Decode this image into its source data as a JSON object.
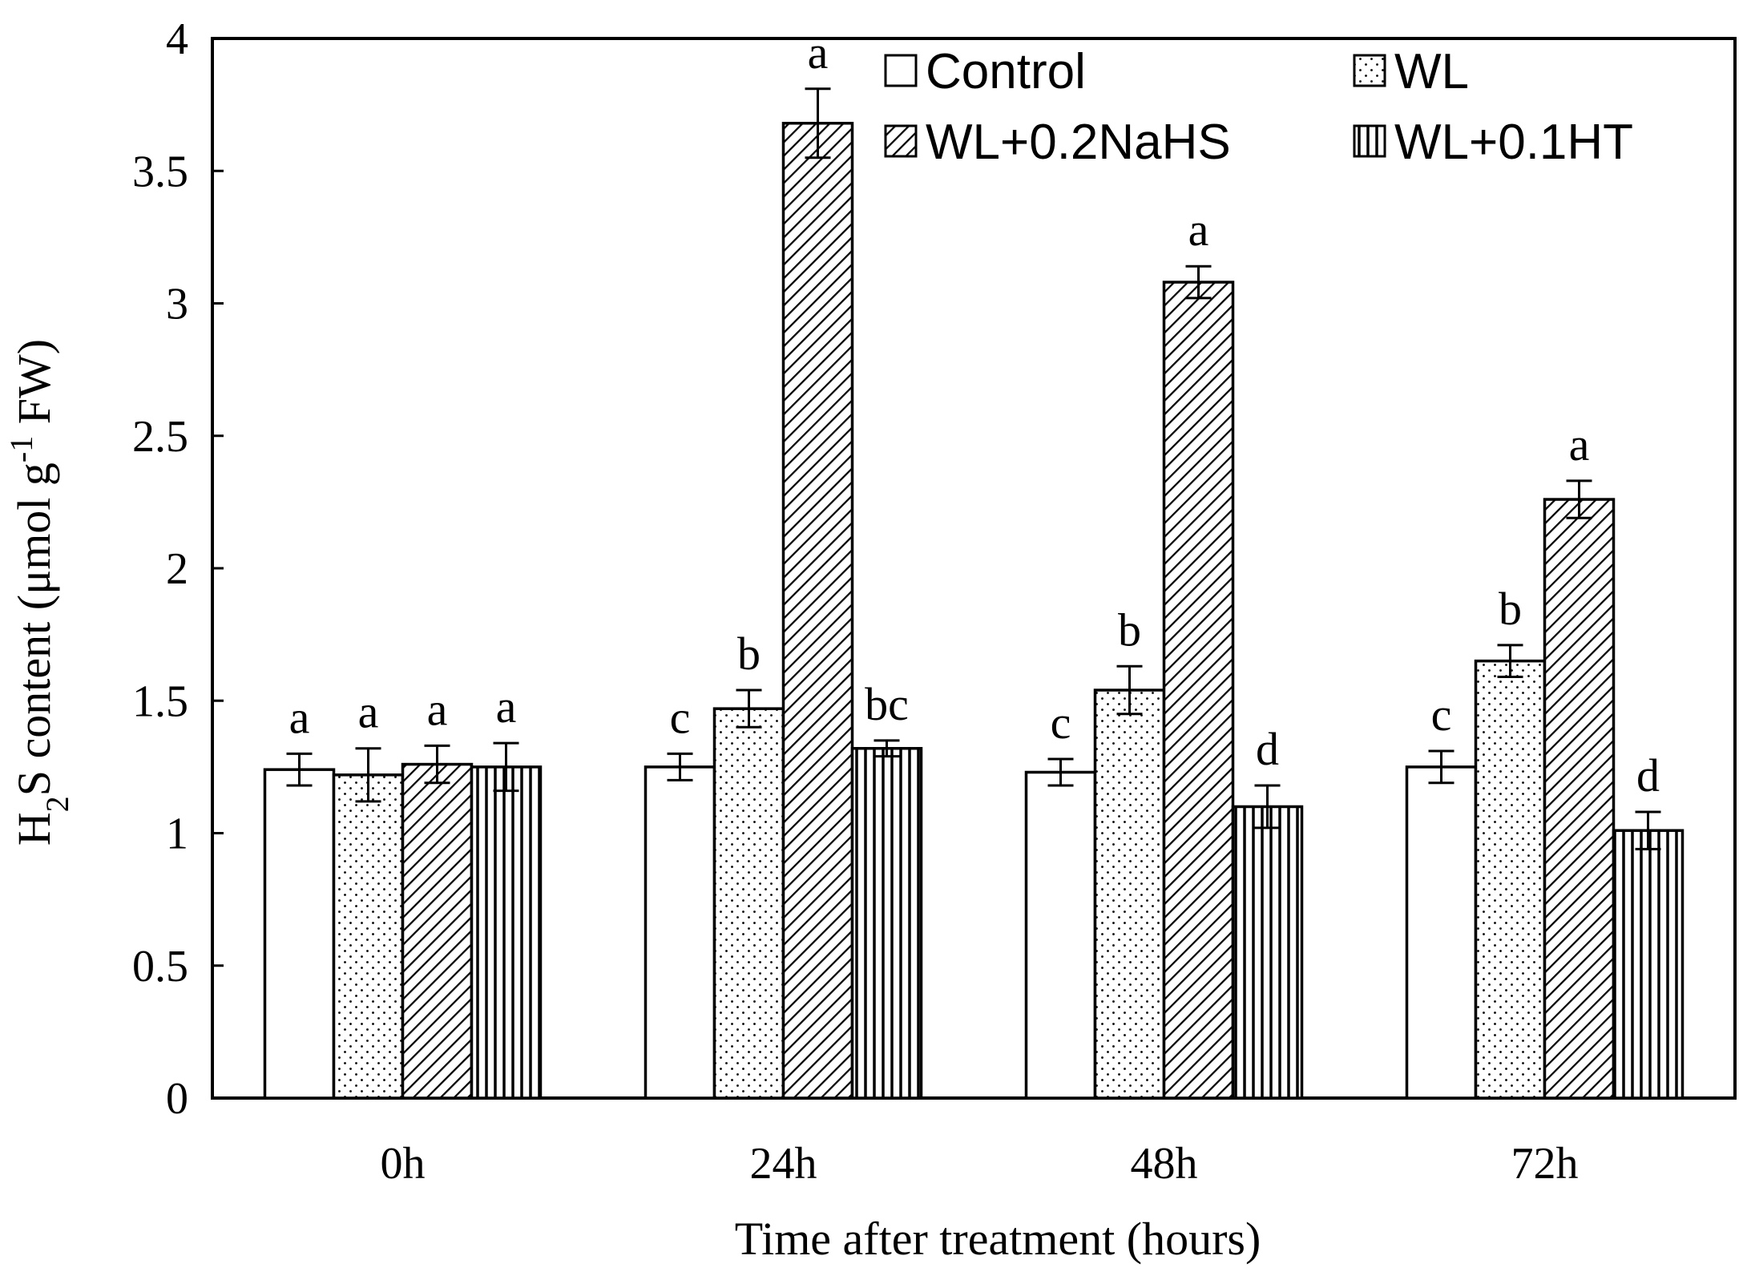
{
  "chart_data": {
    "type": "bar",
    "title": "",
    "xlabel": "Time after treatment (hours)",
    "ylabel": {
      "prefix": "H",
      "sub": "2",
      "middle": "S content (μmol g",
      "sup": "-1",
      "suffix": " FW)"
    },
    "ylim": [
      0,
      4
    ],
    "yticks": [
      "0",
      "0.5",
      "1",
      "1.5",
      "2",
      "2.5",
      "3",
      "3.5",
      "4"
    ],
    "yticks_values": [
      0,
      0.5,
      1,
      1.5,
      2,
      2.5,
      3,
      3.5,
      4
    ],
    "categories": [
      "0h",
      "24h",
      "48h",
      "72h"
    ],
    "legend_position": "top-right",
    "series": [
      {
        "name": "Control",
        "pattern": "plain",
        "values": [
          1.24,
          1.25,
          1.23,
          1.25
        ],
        "errors": [
          0.06,
          0.05,
          0.05,
          0.06
        ],
        "labels": [
          "a",
          "c",
          "c",
          "c"
        ]
      },
      {
        "name": "WL",
        "pattern": "dots",
        "values": [
          1.22,
          1.47,
          1.54,
          1.65
        ],
        "errors": [
          0.1,
          0.07,
          0.09,
          0.06
        ],
        "labels": [
          "a",
          "b",
          "b",
          "b"
        ]
      },
      {
        "name": "WL+0.2NaHS",
        "pattern": "diagonal",
        "values": [
          1.26,
          3.68,
          3.08,
          2.26
        ],
        "errors": [
          0.07,
          0.13,
          0.06,
          0.07
        ],
        "labels": [
          "a",
          "a",
          "a",
          "a"
        ]
      },
      {
        "name": "WL+0.1HT",
        "pattern": "vertical",
        "values": [
          1.25,
          1.32,
          1.1,
          1.01
        ],
        "errors": [
          0.09,
          0.03,
          0.08,
          0.07
        ],
        "labels": [
          "a",
          "bc",
          "d",
          "d"
        ]
      }
    ]
  },
  "colors": {
    "axis": "#000000",
    "bar_fill": "#ffffff",
    "bar_stroke": "#000000"
  }
}
